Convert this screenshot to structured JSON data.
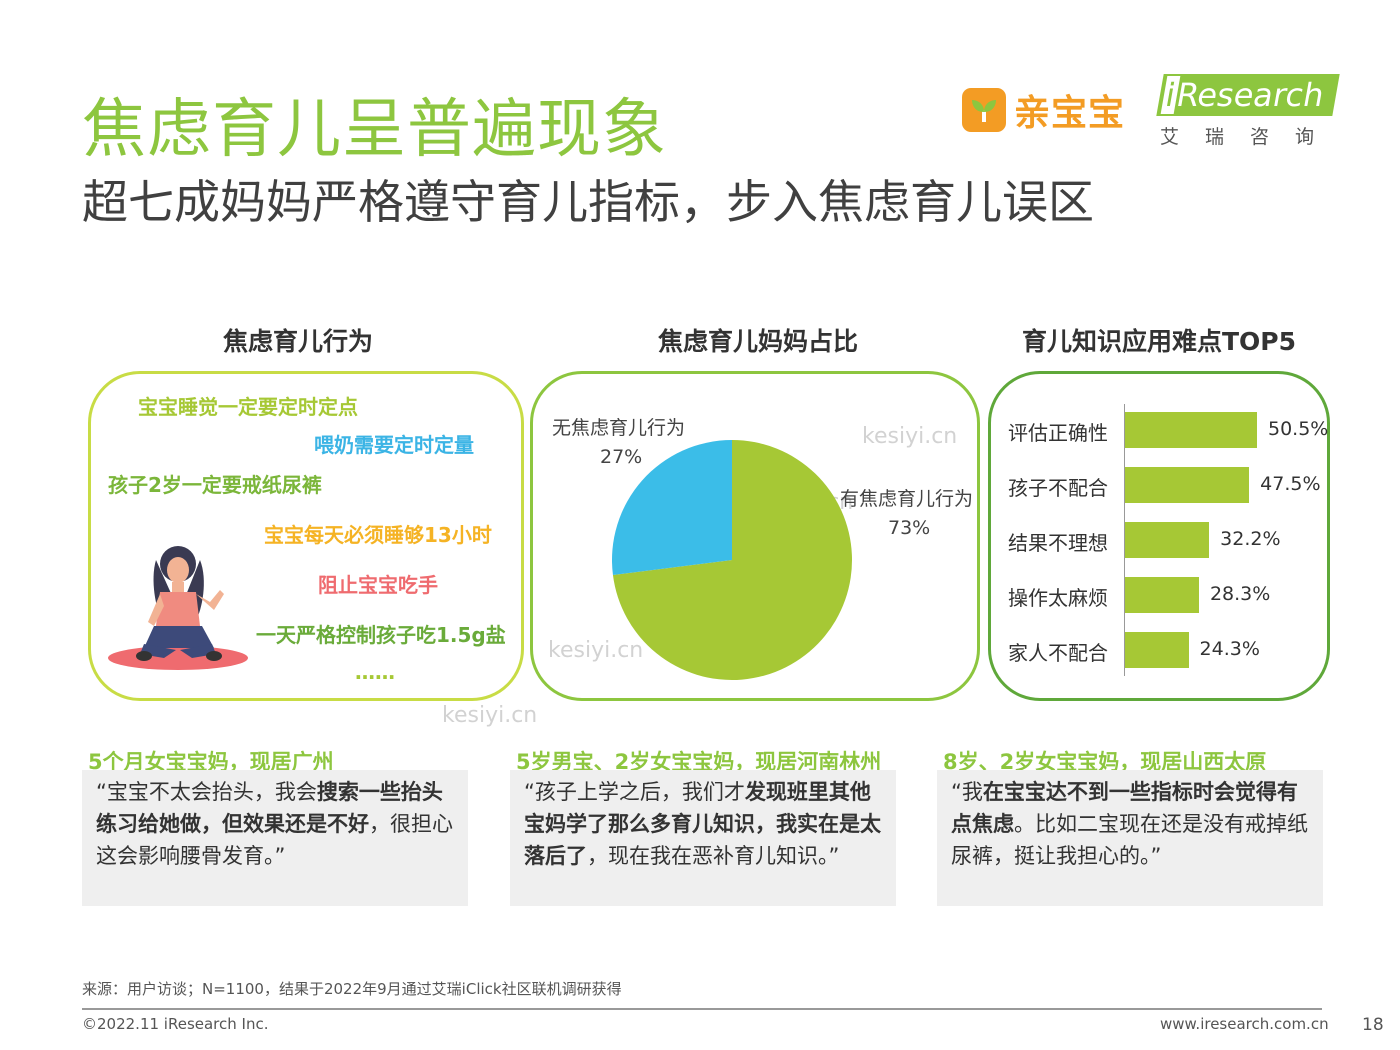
{
  "title": "焦虑育儿呈普遍现象",
  "subtitle": "超七成妈妈严格遵守育儿指标，步入焦虑育儿误区",
  "logos": {
    "qbb_text": "亲宝宝",
    "ir_text": "Research",
    "ir_i": "i",
    "ir_cn": "艾瑞咨询"
  },
  "watermark": "kesiyi.cn",
  "panels": {
    "behaviors": {
      "header": "焦虑育儿行为",
      "items": [
        {
          "text": "宝宝睡觉一定要定时定点",
          "color": "#a6c835"
        },
        {
          "text": "喂奶需要定时定量",
          "color": "#3bb4e5"
        },
        {
          "text": "孩子2岁一定要戒纸尿裤",
          "color": "#7bb63a"
        },
        {
          "text": "宝宝每天必须睡够13小时",
          "color": "#f5b324"
        },
        {
          "text": "阻止宝宝吃手",
          "color": "#ef6b6f"
        },
        {
          "text": "一天严格控制孩子吃1.5g盐",
          "color": "#6aab3a"
        },
        {
          "text": "……",
          "color": "#a6c835"
        }
      ]
    },
    "pie": {
      "header": "焦虑育儿妈妈占比"
    },
    "bars": {
      "header": "育儿知识应用难点TOP5"
    }
  },
  "chart_data": [
    {
      "type": "pie",
      "title": "焦虑育儿妈妈占比",
      "slices": [
        {
          "label": "有焦虑育儿行为",
          "value": 73,
          "display": "73%",
          "color": "#a6c835"
        },
        {
          "label": "无焦虑育儿行为",
          "value": 27,
          "display": "27%",
          "color": "#3bbde8"
        }
      ]
    },
    {
      "type": "bar",
      "orientation": "horizontal",
      "title": "育儿知识应用难点TOP5",
      "categories": [
        "评估正确性",
        "孩子不配合",
        "结果不理想",
        "操作太麻烦",
        "家人不配合"
      ],
      "values": [
        50.5,
        47.5,
        32.2,
        28.3,
        24.3
      ],
      "display": [
        "50.5%",
        "47.5%",
        "32.2%",
        "28.3%",
        "24.3%"
      ],
      "color": "#a6c835"
    }
  ],
  "quotes": [
    {
      "title": "5个月女宝宝妈，现居广州",
      "segments": [
        {
          "t": "“宝宝不太会抬头，我会",
          "b": false
        },
        {
          "t": "搜索一些抬头练习给她做，但效果还是不好",
          "b": true
        },
        {
          "t": "，很担心这会影响腰骨发育。”",
          "b": false
        }
      ]
    },
    {
      "title": "5岁男宝、2岁女宝宝妈，现居河南林州",
      "segments": [
        {
          "t": "“孩子上学之后，我们才",
          "b": false
        },
        {
          "t": "发现班里其他宝妈学了那么多育儿知识，我实在是太落后了",
          "b": true
        },
        {
          "t": "，现在我在恶补育儿知识。”",
          "b": false
        }
      ]
    },
    {
      "title": "8岁、2岁女宝宝妈，现居山西太原",
      "segments": [
        {
          "t": "“我",
          "b": false
        },
        {
          "t": "在宝宝达不到一些指标时会觉得有点焦虑",
          "b": true
        },
        {
          "t": "。比如二宝现在还是没有戒掉纸尿裤，挺让我担心的。”",
          "b": false
        }
      ]
    }
  ],
  "footer": {
    "source": "来源：用户访谈；N=1100，结果于2022年9月通过艾瑞iClick社区联机调研获得",
    "copyright": "©2022.11 iResearch Inc.",
    "website": "www.iresearch.com.cn",
    "page": "18"
  }
}
